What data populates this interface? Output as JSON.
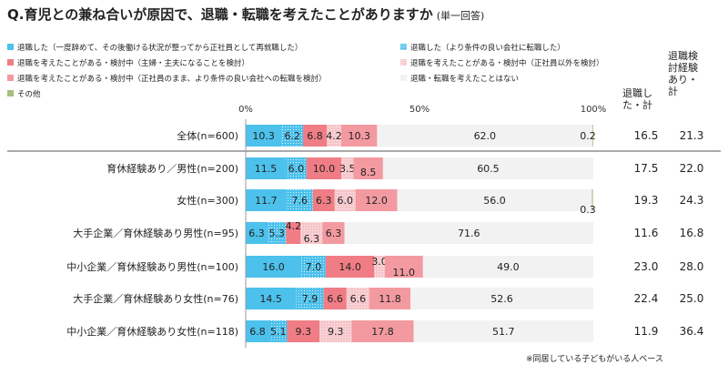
{
  "title": "Q.育児との兼ね合いが原因で、退職・転職を考えたことがありますか",
  "subtitle": "(単一回答)",
  "footnote": "※同居している子どもがいる人ベース",
  "extra_headers": {
    "retired": "退職し\nた・計",
    "considered": "退職検\n討経験\nあり・\n計"
  },
  "legend_colors": [
    "#4cc1ec",
    "#4cc1ec",
    "#f07d85",
    "#f6c6ca",
    "#f39aa0",
    "#f2f2f2",
    "#a7bf7c"
  ],
  "legend_patterns": [
    false,
    true,
    false,
    true,
    false,
    false,
    false
  ],
  "chart_data": {
    "type": "bar",
    "orientation": "horizontal",
    "stacked": true,
    "xlim": [
      0,
      100
    ],
    "x_ticks": [
      "0%",
      "50%",
      "100%"
    ],
    "categories": [
      "全体(n=600)",
      "育休経験あり／男性(n=200)",
      "女性(n=300)",
      "大手企業／育休経験あり男性(n=95)",
      "中小企業／育休経験あり男性(n=100)",
      "大手企業／育休経験あり女性(n=76)",
      "中小企業／育休経験あり女性(n=118)"
    ],
    "series": [
      {
        "name": "退職した（一度辞めて、その後働ける状況が整ってから正社員として再就職した）",
        "values": [
          10.3,
          11.5,
          11.7,
          6.3,
          16.0,
          14.5,
          6.8
        ]
      },
      {
        "name": "退職した（より条件の良い会社に転職した）",
        "values": [
          6.2,
          6.0,
          7.6,
          5.3,
          7.0,
          7.9,
          5.1
        ]
      },
      {
        "name": "退職を考えたことがある・検討中（主婦・主夫になることを検討）",
        "values": [
          6.8,
          10.0,
          6.3,
          4.2,
          14.0,
          6.6,
          9.3
        ]
      },
      {
        "name": "退職を考えたことがある・検討中（正社員以外を検討）",
        "values": [
          4.2,
          3.5,
          6.0,
          6.3,
          3.0,
          6.6,
          9.3
        ]
      },
      {
        "name": "退職を考えたことがある・検討中（正社員のまま、より条件の良い会社への転職を検討）",
        "values": [
          10.3,
          8.5,
          12.0,
          6.3,
          11.0,
          11.8,
          17.8
        ]
      },
      {
        "name": "退職・転職を考えたことはない",
        "values": [
          62.0,
          60.5,
          56.0,
          71.6,
          49.0,
          52.6,
          51.7
        ]
      },
      {
        "name": "その他",
        "values": [
          0.2,
          0,
          0.3,
          0,
          0,
          0,
          0
        ]
      }
    ],
    "label_text": [
      [
        "10.3",
        "6.2",
        "6.8",
        "4.2",
        "10.3",
        "62.0",
        "0.2"
      ],
      [
        "11.5",
        "6.0",
        "10.0",
        "3.5",
        "8.5",
        "60.5",
        ""
      ],
      [
        "11.7",
        "7.6",
        "6.3",
        "6.0",
        "12.0",
        "56.0",
        "0.3"
      ],
      [
        "6.3",
        "5.3",
        "4.2",
        "6.3",
        "6.3",
        "71.6",
        ""
      ],
      [
        "16.0",
        "7.0",
        "14.0",
        "3.0",
        "11.0",
        "49.0",
        ""
      ],
      [
        "14.5",
        "7.9",
        "6.6",
        "6.6",
        "11.8",
        "52.6",
        ""
      ],
      [
        "6.8",
        "5.1",
        "9.3",
        "9.3",
        "17.8",
        "51.7",
        ""
      ]
    ],
    "retired_total": [
      "16.5",
      "17.5",
      "19.3",
      "11.6",
      "23.0",
      22.4,
      "11.9"
    ],
    "considered_total": [
      "21.3",
      "22.0",
      "24.3",
      "16.8",
      "28.0",
      "25.0",
      "36.4"
    ]
  }
}
